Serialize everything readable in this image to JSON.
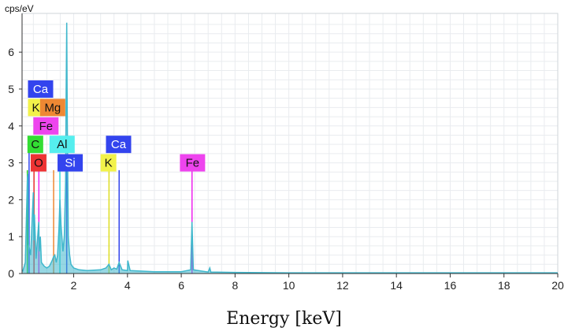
{
  "chart_data": {
    "type": "line",
    "title": "",
    "ylabel": "cps/eV",
    "xlabel": "Energy [keV]",
    "xlim": [
      0,
      20
    ],
    "ylim": [
      0,
      7
    ],
    "x_ticks": [
      "2",
      "4",
      "6",
      "8",
      "10",
      "12",
      "14",
      "16",
      "18",
      "20"
    ],
    "y_ticks": [
      "0",
      "1",
      "2",
      "3",
      "4",
      "5",
      "6"
    ],
    "grid": true,
    "series": [
      {
        "color": "#3fb7cc",
        "x": [
          0.1,
          0.2,
          0.28,
          0.3,
          0.32,
          0.4,
          0.5,
          0.52,
          0.54,
          0.6,
          0.7,
          0.72,
          0.76,
          0.8,
          0.9,
          1.0,
          1.1,
          1.2,
          1.25,
          1.3,
          1.35,
          1.4,
          1.45,
          1.49,
          1.53,
          1.6,
          1.65,
          1.7,
          1.72,
          1.74,
          1.76,
          1.8,
          1.85,
          1.9,
          2.0,
          2.2,
          2.5,
          3.0,
          3.2,
          3.31,
          3.4,
          3.5,
          3.6,
          3.69,
          3.8,
          4.0,
          4.01,
          4.1,
          5.0,
          6.0,
          6.35,
          6.4,
          6.45,
          7.0,
          7.06,
          7.1,
          8.0,
          10.0,
          12.0,
          14.0,
          16.0,
          18.0,
          20.0
        ],
        "y": [
          0.05,
          0.3,
          2.6,
          2.7,
          0.8,
          0.5,
          2.2,
          0.9,
          1.6,
          0.4,
          1.4,
          0.6,
          1.0,
          0.3,
          0.2,
          0.15,
          0.2,
          0.35,
          0.45,
          0.5,
          0.3,
          0.5,
          1.2,
          2.0,
          1.3,
          0.6,
          1.0,
          2.5,
          5.0,
          6.8,
          4.5,
          1.0,
          0.5,
          0.25,
          0.15,
          0.1,
          0.08,
          0.1,
          0.15,
          0.25,
          0.1,
          0.15,
          0.12,
          0.3,
          0.1,
          0.08,
          0.35,
          0.08,
          0.05,
          0.05,
          0.1,
          1.4,
          0.1,
          0.04,
          0.15,
          0.04,
          0.03,
          0.02,
          0.02,
          0.02,
          0.02,
          0.02,
          0.02
        ]
      }
    ],
    "element_lines": [
      {
        "x": 0.277,
        "height": 2.8,
        "color": "#22cc22"
      },
      {
        "x": 0.341,
        "height": 3.6,
        "color": "#3344ee"
      },
      {
        "x": 0.525,
        "height": 2.8,
        "color": "#ee3333"
      },
      {
        "x": 0.705,
        "height": 3.2,
        "color": "#ee22ee"
      },
      {
        "x": 1.254,
        "height": 2.8,
        "color": "#ee8833"
      },
      {
        "x": 1.487,
        "height": 2.8,
        "color": "#33dddd"
      },
      {
        "x": 1.74,
        "height": 2.8,
        "color": "#3344ee"
      },
      {
        "x": 3.313,
        "height": 2.8,
        "color": "#dddd22"
      },
      {
        "x": 3.69,
        "height": 2.8,
        "color": "#3344ee"
      },
      {
        "x": 6.4,
        "height": 2.8,
        "color": "#ee22ee"
      }
    ],
    "element_labels": [
      {
        "text": "Ca",
        "x": 0.3,
        "y": 5.0,
        "bg": "#3344ee",
        "fg": "#ffffff"
      },
      {
        "text": "K",
        "x": 0.3,
        "y": 4.5,
        "bg": "#f2f24a",
        "fg": "#111111"
      },
      {
        "text": "Mg",
        "x": 0.75,
        "y": 4.5,
        "bg": "#ee8833",
        "fg": "#111111"
      },
      {
        "text": "Fe",
        "x": 0.5,
        "y": 4.0,
        "bg": "#ee44ee",
        "fg": "#111111"
      },
      {
        "text": "C",
        "x": 0.28,
        "y": 3.5,
        "bg": "#33dd33",
        "fg": "#111111"
      },
      {
        "text": "Al",
        "x": 1.1,
        "y": 3.5,
        "bg": "#55eeee",
        "fg": "#111111"
      },
      {
        "text": "O",
        "x": 0.4,
        "y": 3.0,
        "bg": "#ee3333",
        "fg": "#111111"
      },
      {
        "text": "Si",
        "x": 1.4,
        "y": 3.0,
        "bg": "#3344ee",
        "fg": "#ffffff"
      },
      {
        "text": "Ca",
        "x": 3.2,
        "y": 3.5,
        "bg": "#3344ee",
        "fg": "#ffffff"
      },
      {
        "text": "K",
        "x": 3.0,
        "y": 3.0,
        "bg": "#f2f24a",
        "fg": "#111111"
      },
      {
        "text": "Fe",
        "x": 5.95,
        "y": 3.0,
        "bg": "#ee44ee",
        "fg": "#111111"
      }
    ]
  }
}
